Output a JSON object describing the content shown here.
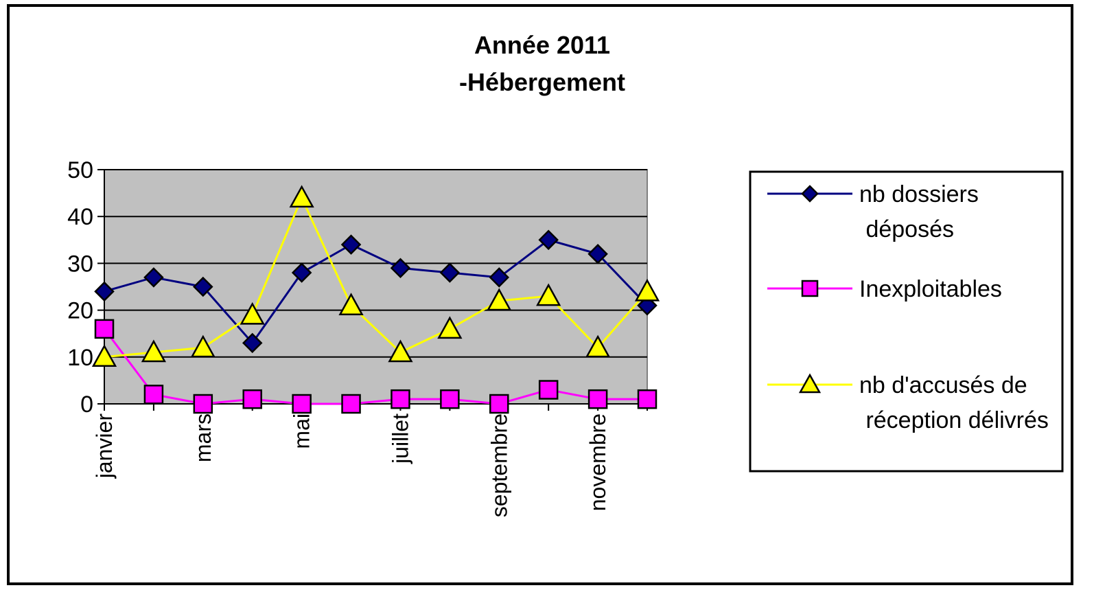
{
  "chart_data": {
    "type": "line",
    "title": [
      "Année 2011",
      "-Hébergement"
    ],
    "categories": [
      "janvier",
      null,
      "mars",
      null,
      "mai",
      null,
      "juillet",
      null,
      "septembre",
      null,
      "novembre",
      null
    ],
    "series": [
      {
        "name": "nb dossiers déposés",
        "color": "#000080",
        "marker": "diamond",
        "values": [
          24,
          27,
          25,
          13,
          28,
          34,
          29,
          28,
          27,
          35,
          32,
          21
        ]
      },
      {
        "name": "Inexploitables",
        "color": "#ff00ff",
        "marker": "square",
        "values": [
          16,
          2,
          0,
          1,
          0,
          0,
          1,
          1,
          0,
          3,
          1,
          1
        ]
      },
      {
        "name": "nb d'accusés de réception délivrés",
        "color": "#ffff00",
        "marker": "triangle",
        "values": [
          10,
          11,
          12,
          19,
          44,
          21,
          11,
          16,
          22,
          23,
          12,
          24
        ]
      }
    ],
    "ylim": [
      0,
      50
    ],
    "yticks": [
      0,
      10,
      20,
      30,
      40,
      50
    ],
    "grid": true,
    "legend": "right"
  }
}
